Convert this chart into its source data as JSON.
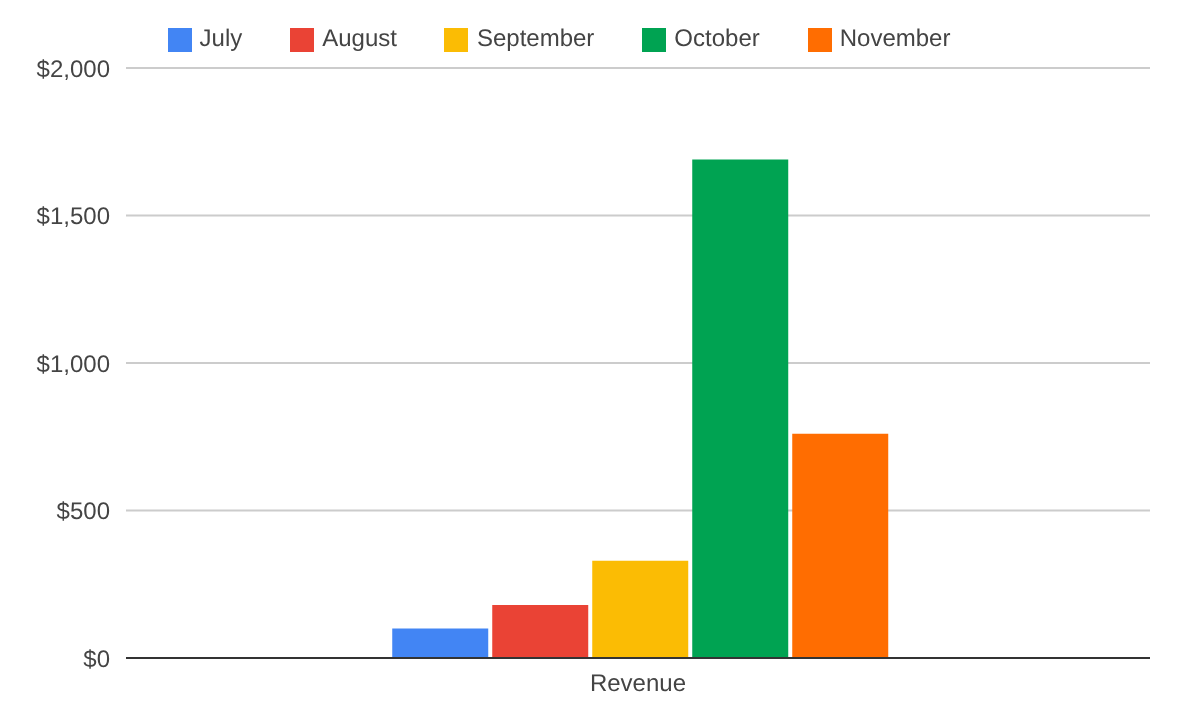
{
  "chart_data": {
    "type": "bar",
    "categories": [
      "Revenue"
    ],
    "series": [
      {
        "name": "July",
        "color": "#4285f4",
        "values": [
          100
        ]
      },
      {
        "name": "August",
        "color": "#ea4335",
        "values": [
          180
        ]
      },
      {
        "name": "September",
        "color": "#fbbc04",
        "values": [
          330
        ]
      },
      {
        "name": "October",
        "color": "#00a352",
        "values": [
          1690
        ]
      },
      {
        "name": "November",
        "color": "#ff6d01",
        "values": [
          760
        ]
      }
    ],
    "ylim": [
      0,
      2000
    ],
    "yticks": [
      {
        "value": 0,
        "label": "$0"
      },
      {
        "value": 500,
        "label": "$500"
      },
      {
        "value": 1000,
        "label": "$1,000"
      },
      {
        "value": 1500,
        "label": "$1,500"
      },
      {
        "value": 2000,
        "label": "$2,000"
      }
    ],
    "grid": "y",
    "legend": "top"
  }
}
